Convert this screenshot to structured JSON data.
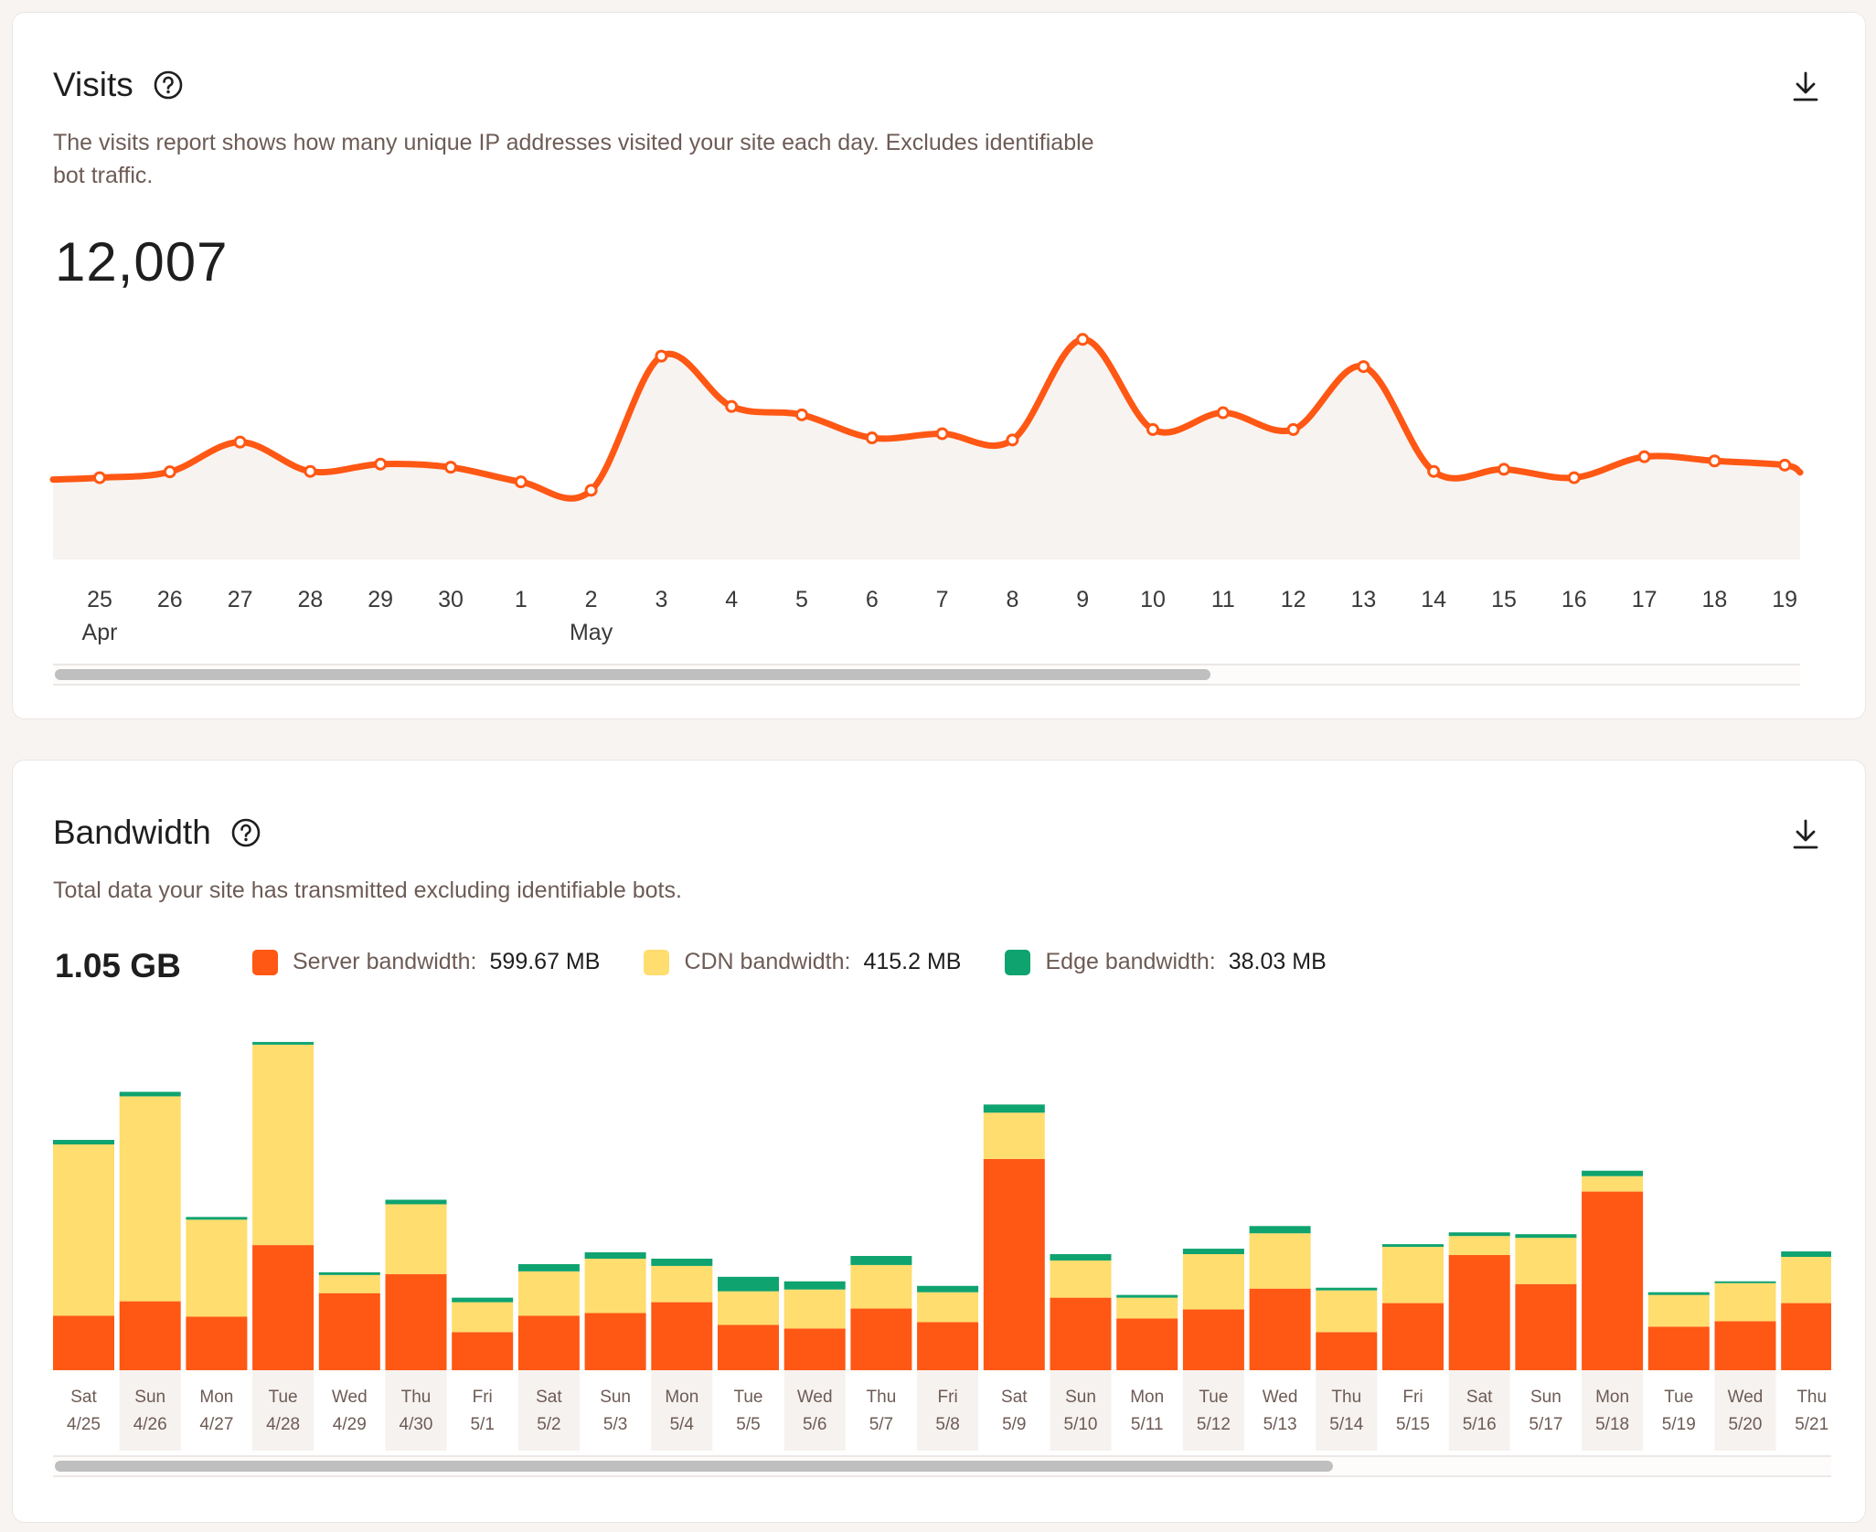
{
  "visits": {
    "title": "Visits",
    "description": "The visits report shows how many unique IP addresses visited your site each day. Excludes identifiable bot traffic.",
    "total": "12,007",
    "help_icon": "question-circle-icon",
    "download_icon": "download-icon"
  },
  "bandwidth": {
    "title": "Bandwidth",
    "description": "Total data your site has transmitted excluding identifiable bots.",
    "total": "1.05 GB",
    "help_icon": "question-circle-icon",
    "download_icon": "download-icon",
    "legend": [
      {
        "label": "Server bandwidth:",
        "value": "599.67 MB",
        "color": "#ff5714"
      },
      {
        "label": "CDN bandwidth:",
        "value": "415.2 MB",
        "color": "#ffdd6e"
      },
      {
        "label": "Edge bandwidth:",
        "value": "38.03 MB",
        "color": "#0fa36f"
      }
    ]
  },
  "chart_data": [
    {
      "type": "area",
      "title": "Visits",
      "x_ticks": [
        "25",
        "26",
        "27",
        "28",
        "29",
        "30",
        "1",
        "2",
        "3",
        "4",
        "5",
        "6",
        "7",
        "8",
        "9",
        "10",
        "11",
        "12",
        "13",
        "14",
        "15",
        "16",
        "17",
        "18",
        "19"
      ],
      "month_labels": [
        {
          "at": "25",
          "label": "Apr"
        },
        {
          "at": "2",
          "label": "May"
        }
      ],
      "series": [
        {
          "values": [
            390,
            418,
            560,
            420,
            455,
            440,
            370,
            330,
            970,
            730,
            690,
            580,
            600,
            570,
            1050,
            620,
            700,
            620,
            920,
            420,
            430,
            390,
            490,
            470,
            450
          ]
        }
      ],
      "ylim": [
        0,
        1200
      ],
      "color": "#ff5714",
      "fill": "#f7f3f0",
      "grid": false,
      "scrollable": true
    },
    {
      "type": "bar",
      "stacked": true,
      "title": "Bandwidth",
      "categories": [
        {
          "day": "Sat",
          "date": "4/25"
        },
        {
          "day": "Sun",
          "date": "4/26"
        },
        {
          "day": "Mon",
          "date": "4/27"
        },
        {
          "day": "Tue",
          "date": "4/28"
        },
        {
          "day": "Wed",
          "date": "4/29"
        },
        {
          "day": "Thu",
          "date": "4/30"
        },
        {
          "day": "Fri",
          "date": "5/1"
        },
        {
          "day": "Sat",
          "date": "5/2"
        },
        {
          "day": "Sun",
          "date": "5/3"
        },
        {
          "day": "Mon",
          "date": "5/4"
        },
        {
          "day": "Tue",
          "date": "5/5"
        },
        {
          "day": "Wed",
          "date": "5/6"
        },
        {
          "day": "Thu",
          "date": "5/7"
        },
        {
          "day": "Fri",
          "date": "5/8"
        },
        {
          "day": "Sat",
          "date": "5/9"
        },
        {
          "day": "Sun",
          "date": "5/10"
        },
        {
          "day": "Mon",
          "date": "5/11"
        },
        {
          "day": "Tue",
          "date": "5/12"
        },
        {
          "day": "Wed",
          "date": "5/13"
        },
        {
          "day": "Thu",
          "date": "5/14"
        },
        {
          "day": "Fri",
          "date": "5/15"
        },
        {
          "day": "Sat",
          "date": "5/16"
        },
        {
          "day": "Sun",
          "date": "5/17"
        },
        {
          "day": "Mon",
          "date": "5/18"
        },
        {
          "day": "Tue",
          "date": "5/19"
        },
        {
          "day": "Wed",
          "date": "5/20"
        },
        {
          "day": "Thu",
          "date": "5/21"
        }
      ],
      "series": [
        {
          "name": "Server bandwidth",
          "color": "#ff5714",
          "values": [
            12.0,
            15.2,
            11.8,
            27.6,
            17.0,
            21.2,
            8.4,
            12.0,
            12.6,
            15.0,
            10.0,
            9.2,
            13.6,
            10.6,
            46.6,
            16.0,
            11.4,
            13.4,
            18.0,
            8.4,
            14.8,
            25.4,
            19.0,
            39.4,
            9.6,
            10.8,
            14.8
          ]
        },
        {
          "name": "CDN bandwidth",
          "color": "#ffdd6e",
          "values": [
            37.8,
            45.2,
            21.4,
            44.2,
            4.0,
            15.4,
            6.6,
            9.8,
            12.0,
            8.0,
            7.4,
            8.6,
            9.6,
            6.6,
            10.2,
            8.2,
            4.6,
            12.2,
            12.2,
            9.2,
            12.4,
            4.2,
            10.2,
            3.4,
            7.0,
            8.4,
            10.2
          ]
        },
        {
          "name": "Edge bandwidth",
          "color": "#0fa36f",
          "values": [
            1.0,
            1.0,
            0.6,
            0.6,
            0.6,
            1.0,
            1.0,
            1.6,
            1.4,
            1.6,
            3.2,
            1.8,
            2.0,
            1.4,
            1.8,
            1.4,
            0.6,
            1.2,
            1.6,
            0.6,
            0.6,
            0.8,
            0.8,
            1.2,
            0.6,
            0.4,
            1.2
          ]
        }
      ],
      "ylabel_unit": "MB",
      "ylim": [
        0,
        75
      ],
      "grid": false,
      "scrollable": true
    }
  ]
}
